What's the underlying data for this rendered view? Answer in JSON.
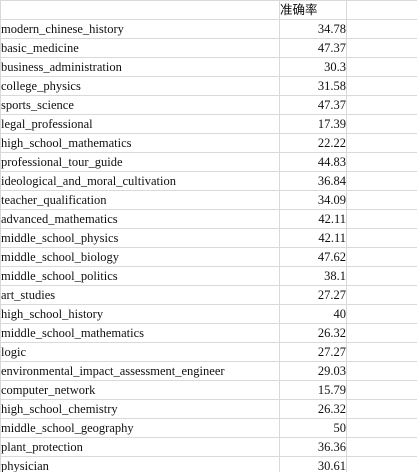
{
  "sheet": {
    "header": {
      "col_a": "",
      "col_b": "准确率",
      "col_c": ""
    },
    "rows": [
      {
        "subject": "modern_chinese_history",
        "accuracy": "34.78"
      },
      {
        "subject": "basic_medicine",
        "accuracy": "47.37"
      },
      {
        "subject": "business_administration",
        "accuracy": "30.3"
      },
      {
        "subject": "college_physics",
        "accuracy": "31.58"
      },
      {
        "subject": "sports_science",
        "accuracy": "47.37"
      },
      {
        "subject": "legal_professional",
        "accuracy": "17.39"
      },
      {
        "subject": "high_school_mathematics",
        "accuracy": "22.22"
      },
      {
        "subject": "professional_tour_guide",
        "accuracy": "44.83"
      },
      {
        "subject": "ideological_and_moral_cultivation",
        "accuracy": "36.84"
      },
      {
        "subject": "teacher_qualification",
        "accuracy": "34.09"
      },
      {
        "subject": "advanced_mathematics",
        "accuracy": "42.11"
      },
      {
        "subject": "middle_school_physics",
        "accuracy": "42.11"
      },
      {
        "subject": "middle_school_biology",
        "accuracy": "47.62"
      },
      {
        "subject": "middle_school_politics",
        "accuracy": "38.1"
      },
      {
        "subject": "art_studies",
        "accuracy": "27.27"
      },
      {
        "subject": "high_school_history",
        "accuracy": "40"
      },
      {
        "subject": "middle_school_mathematics",
        "accuracy": "26.32"
      },
      {
        "subject": "logic",
        "accuracy": "27.27"
      },
      {
        "subject": "environmental_impact_assessment_engineer",
        "accuracy": "29.03"
      },
      {
        "subject": "computer_network",
        "accuracy": "15.79"
      },
      {
        "subject": "high_school_chemistry",
        "accuracy": "26.32"
      },
      {
        "subject": "middle_school_geography",
        "accuracy": "50"
      },
      {
        "subject": "plant_protection",
        "accuracy": "36.36"
      },
      {
        "subject": "physician",
        "accuracy": "30.61"
      }
    ]
  }
}
